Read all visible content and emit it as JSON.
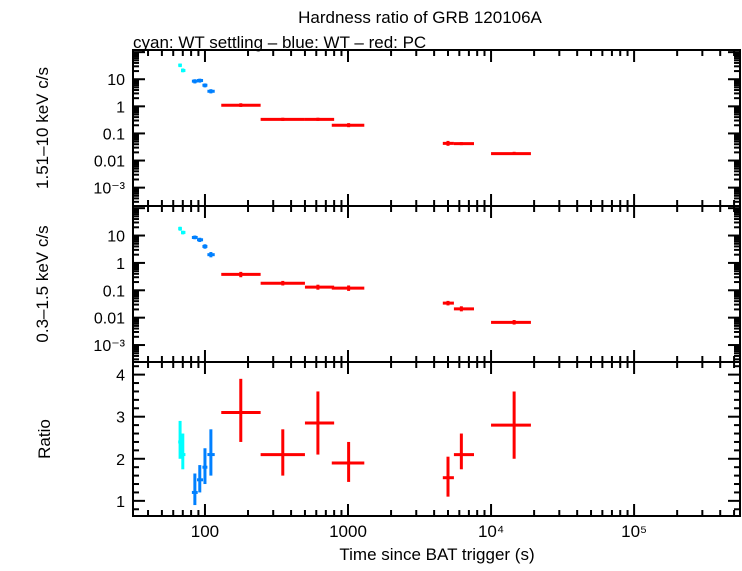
{
  "chart_data": [
    {
      "type": "scatter",
      "title": "Hardness ratio of GRB 120106A",
      "subtitle": "cyan: WT settling – blue: WT – red: PC",
      "ylabel": "1.51–10 keV c/s",
      "yscale": "log",
      "ylim": [
        0.00021,
        120
      ],
      "ytick_labels": [
        "10",
        "1",
        "0.1",
        "0.01",
        "10⁻³"
      ],
      "yticks": [
        10,
        1,
        0.1,
        0.01,
        0.001
      ],
      "series": [
        {
          "color": "#00ffff",
          "points": [
            [
              67,
              33,
              65,
              69,
              28,
              38
            ],
            [
              70,
              21,
              68,
              73,
              18,
              25
            ]
          ]
        },
        {
          "color": "#0080ff",
          "points": [
            [
              85,
              8.5,
              81,
              89,
              7,
              10
            ],
            [
              92,
              9,
              88,
              97,
              7.5,
              10.5
            ],
            [
              100,
              6,
              96,
              104,
              5,
              7
            ],
            [
              110,
              3.6,
              104,
              117,
              3,
              4.3
            ]
          ]
        },
        {
          "color": "#ff0000",
          "points": [
            [
              178,
              1.1,
              130,
              245,
              0.95,
              1.3
            ],
            [
              350,
              0.33,
              245,
              500,
              0.29,
              0.38
            ],
            [
              616,
              0.33,
              500,
              800,
              0.29,
              0.38
            ],
            [
              1010,
              0.2,
              770,
              1300,
              0.17,
              0.24
            ],
            [
              5000,
              0.043,
              4600,
              5500,
              0.035,
              0.053
            ],
            [
              6200,
              0.042,
              5500,
              7600,
              0.037,
              0.048
            ],
            [
              14500,
              0.018,
              10000,
              19000,
              0.016,
              0.021
            ]
          ]
        }
      ]
    },
    {
      "type": "scatter",
      "ylabel": "0.3–1.5 keV c/s",
      "yscale": "log",
      "ylim": [
        0.00024,
        120
      ],
      "ytick_labels": [
        "10",
        "1",
        "0.1",
        "0.01",
        "10⁻³"
      ],
      "yticks": [
        10,
        1,
        0.1,
        0.01,
        0.001
      ],
      "series": [
        {
          "color": "#00ffff",
          "points": [
            [
              67,
              18,
              65,
              69,
              15,
              21
            ],
            [
              70,
              13,
              68,
              73,
              11,
              15
            ]
          ]
        },
        {
          "color": "#0080ff",
          "points": [
            [
              85,
              8.5,
              81,
              89,
              7.3,
              10
            ],
            [
              92,
              7,
              88,
              97,
              5.8,
              8.3
            ],
            [
              100,
              4,
              96,
              104,
              3.3,
              4.8
            ],
            [
              110,
              2,
              104,
              117,
              1.6,
              2.5
            ]
          ]
        },
        {
          "color": "#ff0000",
          "points": [
            [
              178,
              0.38,
              130,
              245,
              0.3,
              0.47
            ],
            [
              350,
              0.18,
              245,
              500,
              0.15,
              0.22
            ],
            [
              616,
              0.13,
              500,
              800,
              0.105,
              0.16
            ],
            [
              1010,
              0.12,
              770,
              1300,
              0.095,
              0.15
            ],
            [
              5000,
              0.034,
              4600,
              5500,
              0.028,
              0.041
            ],
            [
              6200,
              0.021,
              5500,
              7600,
              0.017,
              0.026
            ],
            [
              14500,
              0.0067,
              10000,
              19000,
              0.0056,
              0.0082
            ]
          ]
        }
      ]
    },
    {
      "type": "scatter",
      "ylabel": "Ratio",
      "yscale": "linear",
      "ylim": [
        0.64,
        4.3
      ],
      "ytick_labels": [
        "1",
        "2",
        "3",
        "4"
      ],
      "yticks": [
        1,
        2,
        3,
        4
      ],
      "xlabel": "Time since BAT trigger (s)",
      "xscale": "log",
      "xlim": [
        31.4,
        550000
      ],
      "xtick_labels": [
        "100",
        "1000",
        "10⁴",
        "10⁵"
      ],
      "xticks": [
        100,
        1000,
        10000,
        100000
      ],
      "series": [
        {
          "color": "#00ffff",
          "points": [
            [
              67,
              2.4,
              65,
              69,
              2.0,
              2.9
            ],
            [
              70,
              2.1,
              68,
              73,
              1.75,
              2.6
            ]
          ]
        },
        {
          "color": "#0080ff",
          "points": [
            [
              85,
              1.2,
              81,
              89,
              0.9,
              1.65
            ],
            [
              92,
              1.5,
              88,
              97,
              1.2,
              1.85
            ],
            [
              100,
              1.8,
              96,
              104,
              1.4,
              2.25
            ],
            [
              110,
              2.1,
              104,
              117,
              1.6,
              2.7
            ]
          ]
        },
        {
          "color": "#ff0000",
          "points": [
            [
              178,
              3.1,
              130,
              245,
              2.4,
              3.9
            ],
            [
              350,
              2.1,
              245,
              500,
              1.6,
              2.7
            ],
            [
              616,
              2.85,
              500,
              800,
              2.1,
              3.6
            ],
            [
              1010,
              1.9,
              770,
              1300,
              1.45,
              2.4
            ],
            [
              5000,
              1.55,
              4600,
              5500,
              1.1,
              2.05
            ],
            [
              6200,
              2.1,
              5500,
              7600,
              1.75,
              2.6
            ],
            [
              14500,
              2.8,
              10000,
              19000,
              2.0,
              3.6
            ]
          ]
        }
      ]
    }
  ]
}
